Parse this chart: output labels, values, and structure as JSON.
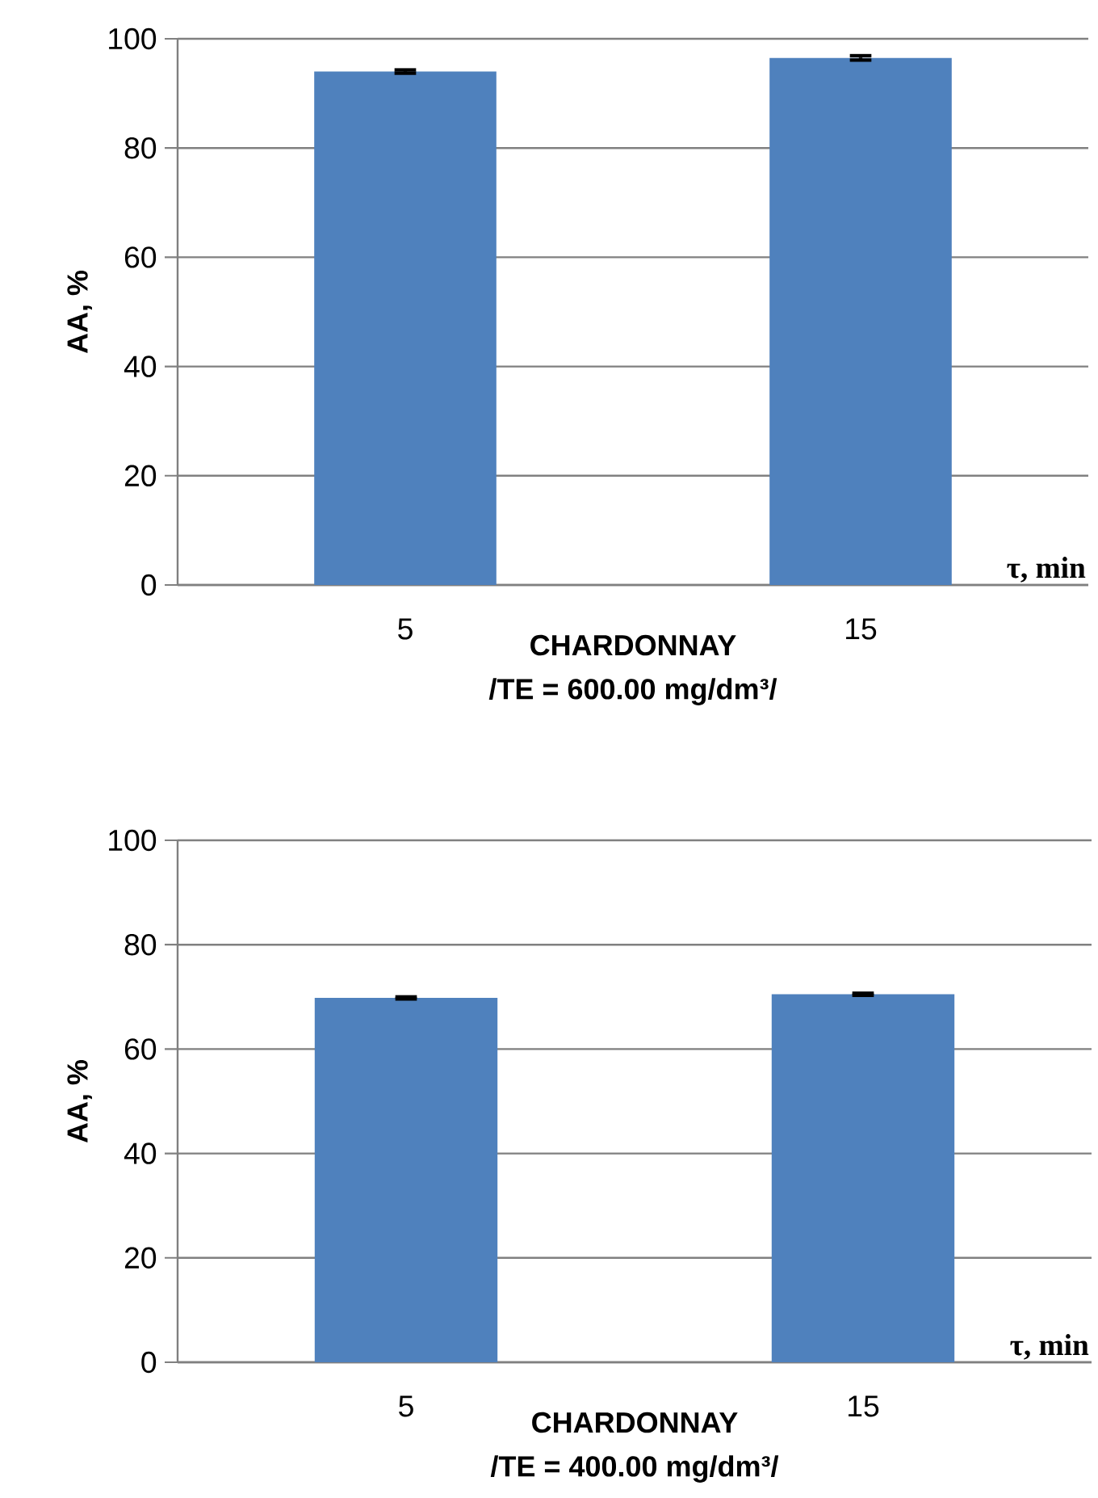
{
  "chart_data": [
    {
      "type": "bar",
      "title": "CHARDONNAY",
      "subtitle": "/TE = 600.00 mg/dm³/",
      "xlabel": "τ, min",
      "ylabel": "AA, %",
      "categories": [
        "5",
        "15"
      ],
      "values": [
        94.0,
        96.5
      ],
      "errors": [
        0.3,
        0.4
      ],
      "color": "#4f81bd",
      "ylim": [
        0,
        100
      ],
      "yticks": [
        0,
        20,
        40,
        60,
        80,
        100
      ],
      "grid": "y"
    },
    {
      "type": "bar",
      "title": "CHARDONNAY",
      "subtitle": "/TE = 400.00 mg/dm³/",
      "xlabel": "τ, min",
      "ylabel": "AA, %",
      "categories": [
        "5",
        "15"
      ],
      "values": [
        69.8,
        70.5
      ],
      "errors": [
        0.2,
        0.2
      ],
      "color": "#4f81bd",
      "ylim": [
        0,
        100
      ],
      "yticks": [
        0,
        20,
        40,
        60,
        80,
        100
      ],
      "grid": "y"
    }
  ]
}
